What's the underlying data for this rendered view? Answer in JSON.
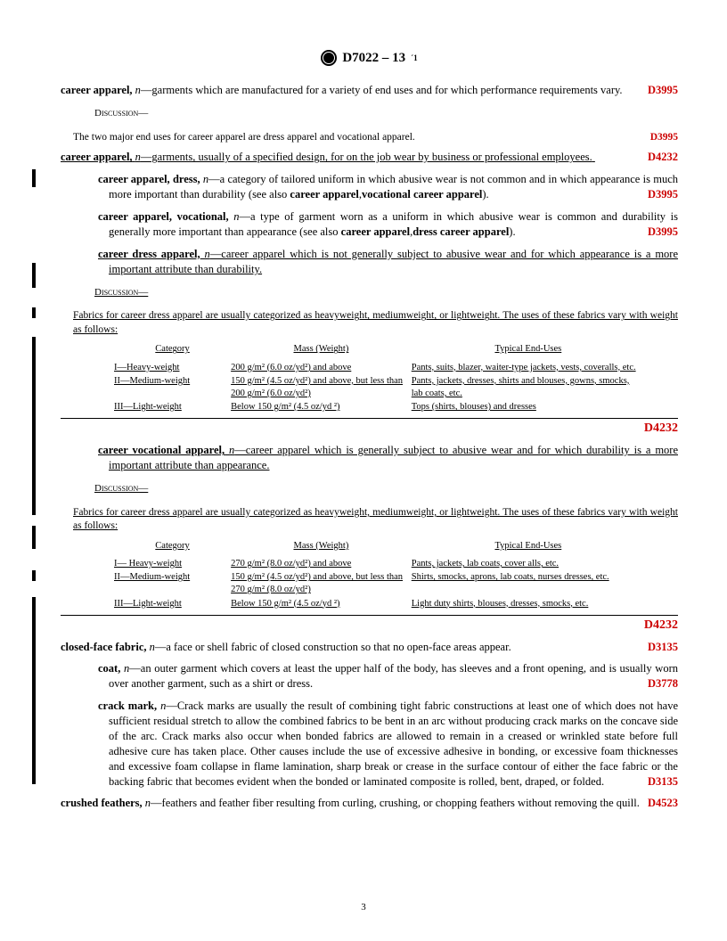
{
  "header": {
    "designation": "D7022 – 13",
    "edition_sup": "´1"
  },
  "page_number": "3",
  "color_ref": "#cc0000",
  "entries": [
    {
      "term": "career apparel,",
      "pos": "n",
      "def": "—garments which are manufactured for a variety of end uses and for which performance requirements vary.",
      "ref": "D3995"
    }
  ],
  "discussions": {
    "d1_label": "Discussion—",
    "d1_text": "The two major end uses for career apparel are dress apparel and vocational apparel.",
    "d1_ref": "D3995"
  },
  "entry2": {
    "term": "career apparel,",
    "pos": "n",
    "def": "—garments, usually of a specified design, for on the job wear by business or professional employees.",
    "ref": "D4232"
  },
  "entry3": {
    "term": "career apparel, dress,",
    "pos": "n",
    "def": "—a category of tailored uniform in which abusive wear is not common and in which appearance is much more important than durability (see also ",
    "bold1": "career apparel",
    "sep": ",",
    "bold2": "vocational career apparel",
    "close": ").",
    "ref": "D3995"
  },
  "entry4": {
    "term": "career apparel, vocational,",
    "pos": "n",
    "def": "—a type of garment worn as a uniform in which abusive wear is common and durability is generally more important than appearance (see also ",
    "bold1": "career apparel",
    "sep": ",",
    "bold2": "dress career apparel",
    "close": ").",
    "ref": "D3995"
  },
  "entry5": {
    "term": "career dress apparel,",
    "pos": "n",
    "def": "—career apparel which is not generally subject to abusive wear and for which appearance is a more important attribute than durability."
  },
  "disc2_label": "Discussion—",
  "disc2_text": "Fabrics for career dress apparel are usually categorized as heavyweight, mediumweight, or lightweight. The uses of these fabrics vary with weight as follows:",
  "table1": {
    "headers": [
      "Category",
      "Mass (Weight)",
      "Typical End-Uses"
    ],
    "rows": [
      [
        "I—Heavy-weight",
        "200 g/m² (6.0 oz/yd²) and above",
        "Pants, suits, blazer, waiter-type jackets, vests, coveralls, etc."
      ],
      [
        "II—Medium-weight",
        "150 g/m² (4.5 oz/yd²) and above, but less than 200 g/m² (6.0 oz/yd²)",
        "Pants, jackets, dresses, shirts and blouses, gowns, smocks, lab coats, etc."
      ],
      [
        "III—Light-weight",
        "Below 150 g/m² (4.5 oz/yd ²)",
        "Tops (shirts, blouses) and dresses"
      ]
    ],
    "ref": "D4232"
  },
  "entry6": {
    "term": "career vocational apparel,",
    "pos": "n",
    "def": "—career apparel which is generally subject to abusive wear and for which durability is a more important attribute than appearance."
  },
  "disc3_label": "Discussion—",
  "disc3_text": "Fabrics for career dress apparel are usually categorized as heavyweight, mediumweight, or lightweight. The uses of these fabrics vary with weight as follows:",
  "table2": {
    "headers": [
      "Category",
      "Mass (Weight)",
      "Typical End-Uses"
    ],
    "rows": [
      [
        "I— Heavy-weight",
        "270 g/m² (8.0 oz/yd²) and above",
        "Pants, jackets, lab coats, cover   alls, etc."
      ],
      [
        "II—Medium-weight",
        "150 g/m² (4.5 oz/yd²) and above, but less than 270 g/m² (8.0 oz/yd²)",
        "Shirts, smocks, aprons, lab coats, nurses dresses, etc."
      ],
      [
        "III—Light-weight",
        "Below 150 g/m² (4.5 oz/yd ²)",
        "Light duty shirts, blouses, dresses, smocks, etc."
      ]
    ],
    "ref": "D4232"
  },
  "entry7": {
    "term": "closed-face fabric,",
    "pos": "n",
    "def": "—a face or shell fabric of closed construction so that no open-face areas appear.",
    "ref": "D3135"
  },
  "entry8": {
    "term": "coat,",
    "pos": "n",
    "def": "—an outer garment which covers at least the upper half of the body, has sleeves and a front opening, and is usually worn over another garment, such as a shirt or dress.",
    "ref": "D3778"
  },
  "entry9": {
    "term": "crack mark,",
    "pos": "n",
    "def": "—Crack marks are usually the result of combining tight fabric constructions at least one of which does not have sufficient residual stretch to allow the combined fabrics to be bent in an arc without producing crack marks on the concave side of the arc. Crack marks also occur when bonded fabrics are allowed to remain in a creased or wrinkled state before full adhesive cure has taken place. Other causes include the use of excessive adhesive in bonding, or excessive foam thicknesses and excessive foam collapse in flame lamination, sharp break or crease in the surface contour of either the face fabric or the backing fabric that becomes evident when the bonded or laminated composite is rolled, bent, draped, or folded.",
    "ref": "D3135"
  },
  "entry10": {
    "term": "crushed feathers,",
    "pos": "n",
    "def": "—feathers and feather fiber resulting from curling, crushing, or chopping feathers without removing the quill.",
    "ref": "D4523"
  }
}
